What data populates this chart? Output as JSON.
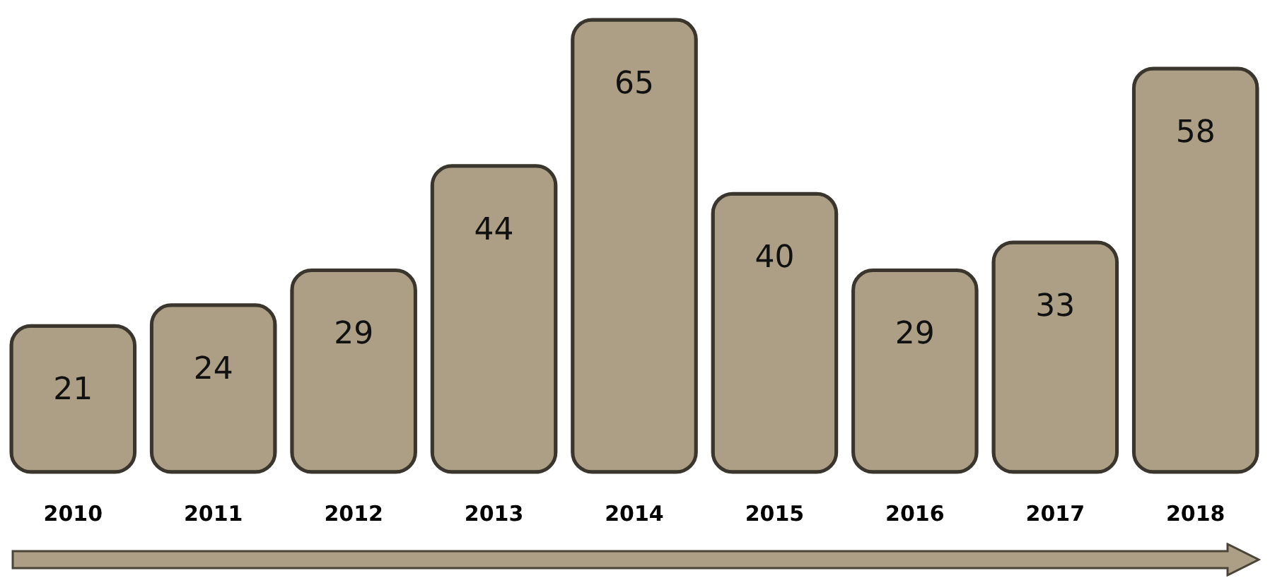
{
  "chart_data": {
    "type": "bar",
    "categories": [
      "2010",
      "2011",
      "2012",
      "2013",
      "2014",
      "2015",
      "2016",
      "2017",
      "2018"
    ],
    "values": [
      21,
      24,
      29,
      44,
      65,
      40,
      29,
      33,
      58
    ],
    "color": "#ad9f85",
    "data_labels": true,
    "tick_labels": "x"
  }
}
